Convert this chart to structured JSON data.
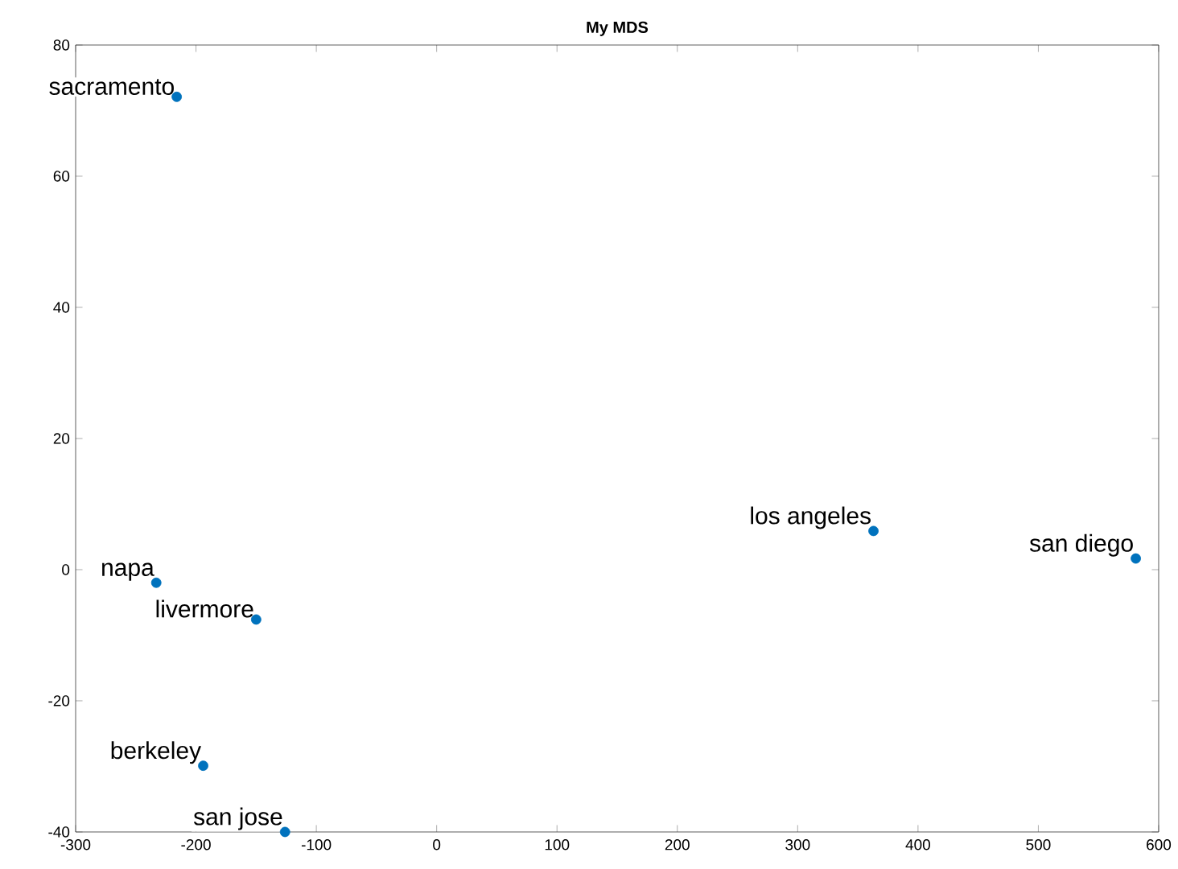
{
  "chart_data": {
    "type": "scatter",
    "title": "My MDS",
    "x": [
      -216,
      -233,
      -150,
      -194,
      -126,
      363,
      581
    ],
    "values": [
      72.1,
      -2.0,
      -7.6,
      -29.9,
      -40,
      5.9,
      1.7
    ],
    "color": "#0072bd",
    "marker": "circle",
    "annotations": [
      {
        "text": "sacramento",
        "x": -216,
        "y": 72.1
      },
      {
        "text": "napa",
        "x": -233,
        "y": -2.0
      },
      {
        "text": "livermore",
        "x": -150,
        "y": -7.6
      },
      {
        "text": "berkeley",
        "x": -194,
        "y": -29.9
      },
      {
        "text": "san jose",
        "x": -126,
        "y": -40
      },
      {
        "text": "los angeles",
        "x": 363,
        "y": 5.9
      },
      {
        "text": "san diego",
        "x": 581,
        "y": 1.7
      }
    ],
    "xlim": [
      -300,
      600
    ],
    "ylim": [
      -40,
      80
    ],
    "xticks": [
      -300,
      -200,
      -100,
      0,
      100,
      200,
      300,
      400,
      500,
      600
    ],
    "yticks": [
      -40,
      -20,
      0,
      20,
      40,
      60,
      80
    ]
  }
}
